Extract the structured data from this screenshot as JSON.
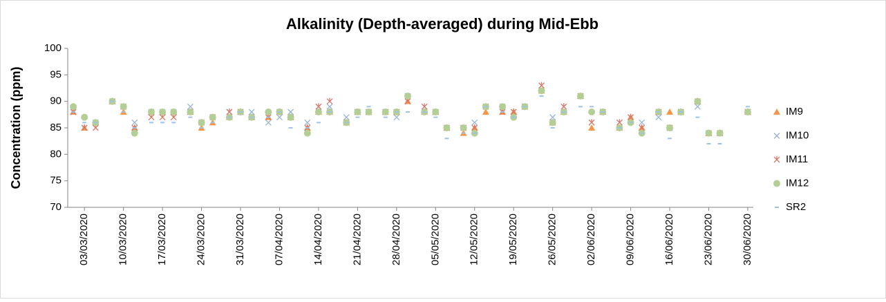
{
  "chart_data": {
    "type": "scatter",
    "title": "Alkalinity (Depth-averaged) during Mid-Ebb",
    "y_label": "Concentration (ppm)",
    "x": [
      "2020-03-01",
      "2020-03-03",
      "2020-03-05",
      "2020-03-08",
      "2020-03-10",
      "2020-03-12",
      "2020-03-15",
      "2020-03-17",
      "2020-03-19",
      "2020-03-22",
      "2020-03-24",
      "2020-03-26",
      "2020-03-29",
      "2020-03-31",
      "2020-04-02",
      "2020-04-05",
      "2020-04-07",
      "2020-04-09",
      "2020-04-12",
      "2020-04-14",
      "2020-04-16",
      "2020-04-19",
      "2020-04-21",
      "2020-04-23",
      "2020-04-26",
      "2020-04-28",
      "2020-04-30",
      "2020-05-03",
      "2020-05-05",
      "2020-05-07",
      "2020-05-10",
      "2020-05-12",
      "2020-05-14",
      "2020-05-17",
      "2020-05-19",
      "2020-05-21",
      "2020-05-24",
      "2020-05-26",
      "2020-05-28",
      "2020-05-31",
      "2020-06-02",
      "2020-06-04",
      "2020-06-07",
      "2020-06-09",
      "2020-06-11",
      "2020-06-14",
      "2020-06-16",
      "2020-06-18",
      "2020-06-21",
      "2020-06-23",
      "2020-06-25",
      "2020-06-30"
    ],
    "series": [
      {
        "name": "IM9",
        "color": "#f79646",
        "marker": "triangle",
        "values": [
          88,
          85,
          86,
          90,
          88,
          85,
          88,
          88,
          88,
          88,
          85,
          86,
          87,
          88,
          87,
          87,
          88,
          87,
          85,
          88,
          88,
          86,
          88,
          88,
          88,
          88,
          90,
          88,
          88,
          85,
          84,
          85,
          88,
          88,
          88,
          89,
          92,
          86,
          88,
          91,
          85,
          88,
          85,
          87,
          85,
          88,
          88,
          88,
          90,
          84,
          84,
          88
        ]
      },
      {
        "name": "IM10",
        "color": "#95b3d7",
        "marker": "x",
        "values": [
          88,
          85,
          86,
          90,
          89,
          86,
          88,
          88,
          88,
          89,
          86,
          87,
          88,
          88,
          88,
          86,
          87,
          88,
          86,
          89,
          89,
          87,
          88,
          88,
          88,
          87,
          91,
          89,
          88,
          85,
          85,
          86,
          89,
          89,
          88,
          89,
          93,
          87,
          89,
          91,
          86,
          88,
          86,
          87,
          86,
          87,
          85,
          88,
          89,
          84,
          84,
          88
        ]
      },
      {
        "name": "IM11",
        "color": "#d9776a",
        "marker": "star",
        "values": [
          88,
          85,
          85,
          90,
          89,
          85,
          87,
          87,
          87,
          88,
          86,
          87,
          88,
          88,
          87,
          87,
          88,
          87,
          85,
          89,
          90,
          86,
          88,
          88,
          88,
          88,
          90,
          89,
          88,
          85,
          85,
          85,
          89,
          88,
          88,
          89,
          93,
          86,
          89,
          91,
          86,
          88,
          86,
          87,
          85,
          88,
          85,
          88,
          90,
          84,
          84,
          88
        ]
      },
      {
        "name": "IM12",
        "color": "#b3cf95",
        "marker": "circle",
        "values": [
          89,
          87,
          86,
          90,
          89,
          84,
          88,
          88,
          88,
          88,
          86,
          87,
          87,
          88,
          87,
          88,
          88,
          87,
          84,
          88,
          88,
          86,
          88,
          88,
          88,
          88,
          91,
          88,
          88,
          85,
          85,
          84,
          89,
          89,
          87,
          89,
          92,
          86,
          88,
          91,
          88,
          88,
          85,
          86,
          84,
          88,
          85,
          88,
          90,
          84,
          84,
          88
        ]
      },
      {
        "name": "SR2",
        "color": "#9dc3e6",
        "marker": "dash",
        "values": [
          88,
          86,
          86,
          90,
          88,
          85,
          86,
          86,
          86,
          87,
          85,
          86,
          87,
          88,
          87,
          87,
          88,
          85,
          85,
          86,
          88,
          86,
          87,
          89,
          87,
          88,
          88,
          88,
          87,
          83,
          84,
          84,
          89,
          88,
          87,
          89,
          91,
          85,
          88,
          89,
          89,
          88,
          85,
          86,
          84,
          88,
          83,
          88,
          87,
          82,
          82,
          89
        ]
      }
    ],
    "xlim": [
      "2020-02-29",
      "2020-07-01"
    ],
    "xticks": [
      {
        "value": "2020-03-03",
        "label": "03/03/2020"
      },
      {
        "value": "2020-03-10",
        "label": "10/03/2020"
      },
      {
        "value": "2020-03-17",
        "label": "17/03/2020"
      },
      {
        "value": "2020-03-24",
        "label": "24/03/2020"
      },
      {
        "value": "2020-03-31",
        "label": "31/03/2020"
      },
      {
        "value": "2020-04-07",
        "label": "07/04/2020"
      },
      {
        "value": "2020-04-14",
        "label": "14/04/2020"
      },
      {
        "value": "2020-04-21",
        "label": "21/04/2020"
      },
      {
        "value": "2020-04-28",
        "label": "28/04/2020"
      },
      {
        "value": "2020-05-05",
        "label": "05/05/2020"
      },
      {
        "value": "2020-05-12",
        "label": "12/05/2020"
      },
      {
        "value": "2020-05-19",
        "label": "19/05/2020"
      },
      {
        "value": "2020-05-26",
        "label": "26/05/2020"
      },
      {
        "value": "2020-06-02",
        "label": "02/06/2020"
      },
      {
        "value": "2020-06-09",
        "label": "09/06/2020"
      },
      {
        "value": "2020-06-16",
        "label": "16/06/2020"
      },
      {
        "value": "2020-06-23",
        "label": "23/06/2020"
      },
      {
        "value": "2020-06-30",
        "label": "30/06/2020"
      }
    ],
    "ylim": [
      70,
      100
    ],
    "yticks": [
      70,
      75,
      80,
      85,
      90,
      95,
      100
    ],
    "grid": false,
    "legend": "right"
  }
}
